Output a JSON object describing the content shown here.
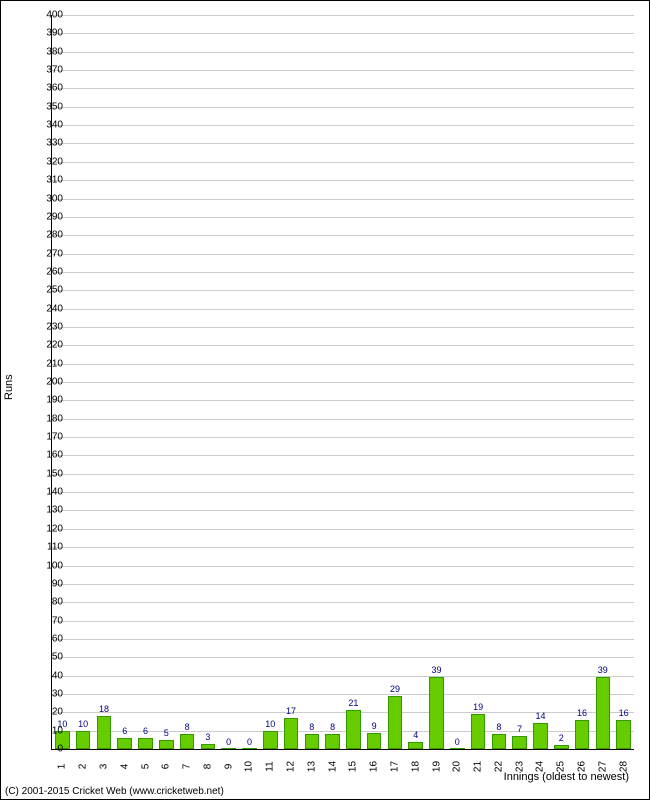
{
  "chart": {
    "type": "bar",
    "y_axis_title": "Runs",
    "x_axis_title": "Innings (oldest to newest)",
    "ylim": [
      0,
      400
    ],
    "ytick_step": 10,
    "grid_color": "#cccccc",
    "background_color": "#ffffff",
    "bar_fill": "#66cc00",
    "bar_border": "#339900",
    "value_label_color": "#000080",
    "axis_color": "#000000",
    "label_fontsize": 10,
    "title_fontsize": 11,
    "bar_width_ratio": 0.7,
    "categories": [
      "1",
      "2",
      "3",
      "4",
      "5",
      "6",
      "7",
      "8",
      "9",
      "10",
      "11",
      "12",
      "13",
      "14",
      "15",
      "16",
      "17",
      "18",
      "19",
      "20",
      "21",
      "22",
      "23",
      "24",
      "25",
      "26",
      "27",
      "28"
    ],
    "values": [
      10,
      10,
      18,
      6,
      6,
      5,
      8,
      3,
      0,
      0,
      10,
      17,
      8,
      8,
      21,
      9,
      29,
      4,
      39,
      0,
      19,
      8,
      7,
      14,
      2,
      16,
      39,
      16
    ]
  },
  "footer": "(C) 2001-2015 Cricket Web (www.cricketweb.net)"
}
